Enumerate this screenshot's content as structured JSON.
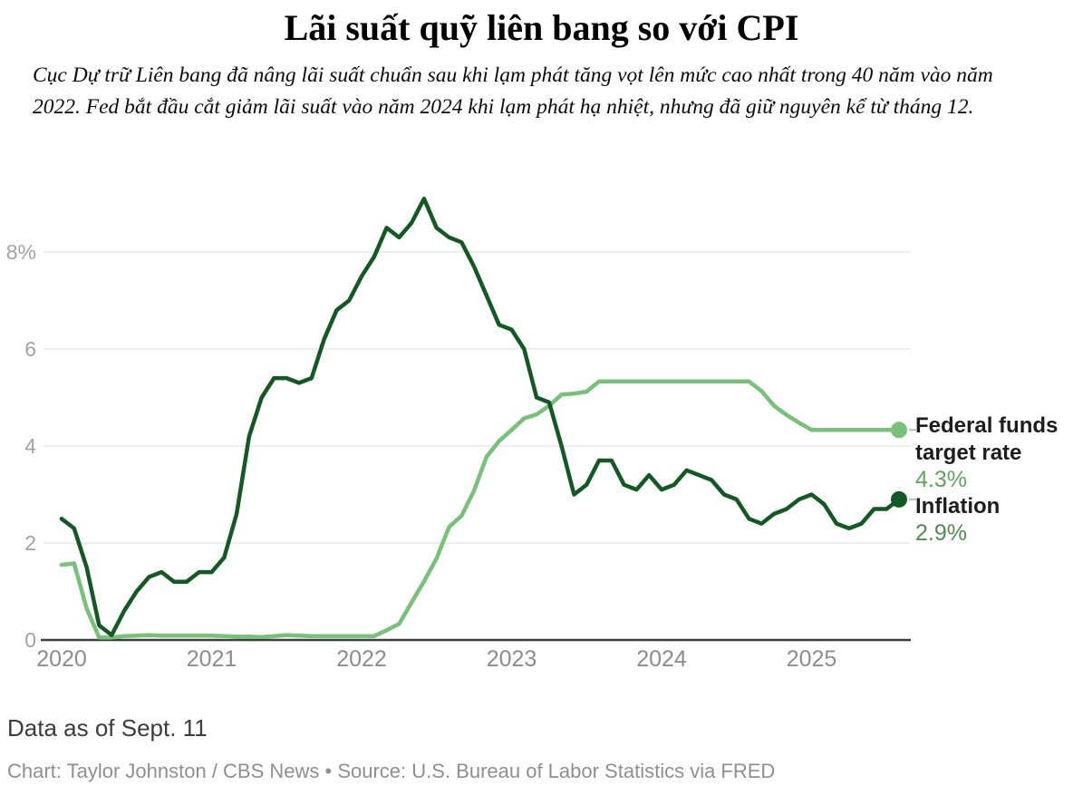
{
  "title": "Lãi suất quỹ liên bang so với CPI",
  "subtitle": "Cục Dự trữ Liên bang đã nâng lãi suất chuẩn sau khi lạm phát tăng vọt lên mức cao nhất trong 40 năm vào năm 2022. Fed bắt đầu cắt giảm lãi suất vào năm 2024 khi lạm phát hạ nhiệt, nhưng đã giữ nguyên kể từ tháng 12.",
  "colors": {
    "fed_line": "#78c178",
    "inflation_line": "#145923",
    "fed_value_text": "#5fa55f",
    "inflation_value_text": "#4f8d50",
    "grid": "#e9e9e9",
    "axis": "#3f3f3f",
    "ytick_label": "#a3a3a3",
    "xtick_label": "#8d8d8d",
    "end_dash": "#bbbbbb"
  },
  "chart_data": {
    "type": "line",
    "x_unit": "month",
    "x_start": "2020-01",
    "x_end": "2025-08",
    "grid": "horizontal",
    "ylim": [
      0,
      9.3
    ],
    "yticks": [
      {
        "label": "0",
        "value": 0
      },
      {
        "label": "2",
        "value": 2
      },
      {
        "label": "4",
        "value": 4
      },
      {
        "label": "6",
        "value": 6
      },
      {
        "label": "8%",
        "value": 8
      }
    ],
    "xticks": [
      {
        "label": "2020",
        "month_index": 0
      },
      {
        "label": "2021",
        "month_index": 12
      },
      {
        "label": "2022",
        "month_index": 24
      },
      {
        "label": "2023",
        "month_index": 36
      },
      {
        "label": "2024",
        "month_index": 48
      },
      {
        "label": "2025",
        "month_index": 60
      }
    ],
    "series": [
      {
        "name": "Federal funds target rate",
        "color": "#78c178",
        "end_value_label": "4.3%",
        "values": [
          1.55,
          1.58,
          0.65,
          0.05,
          0.05,
          0.08,
          0.09,
          0.1,
          0.09,
          0.09,
          0.09,
          0.09,
          0.09,
          0.08,
          0.07,
          0.07,
          0.06,
          0.08,
          0.1,
          0.09,
          0.08,
          0.08,
          0.08,
          0.08,
          0.08,
          0.08,
          0.2,
          0.33,
          0.77,
          1.21,
          1.68,
          2.33,
          2.56,
          3.08,
          3.78,
          4.1,
          4.33,
          4.57,
          4.65,
          4.83,
          5.06,
          5.08,
          5.12,
          5.33,
          5.33,
          5.33,
          5.33,
          5.33,
          5.33,
          5.33,
          5.33,
          5.33,
          5.33,
          5.33,
          5.33,
          5.33,
          5.13,
          4.83,
          4.64,
          4.48,
          4.33,
          4.33,
          4.33,
          4.33,
          4.33,
          4.33,
          4.33,
          4.33
        ]
      },
      {
        "name": "Inflation",
        "color": "#145923",
        "end_value_label": "2.9%",
        "values": [
          2.5,
          2.3,
          1.5,
          0.3,
          0.1,
          0.6,
          1.0,
          1.3,
          1.4,
          1.2,
          1.2,
          1.4,
          1.4,
          1.7,
          2.6,
          4.2,
          5.0,
          5.4,
          5.4,
          5.3,
          5.4,
          6.2,
          6.8,
          7.0,
          7.5,
          7.9,
          8.5,
          8.3,
          8.6,
          9.1,
          8.5,
          8.3,
          8.2,
          7.7,
          7.1,
          6.5,
          6.4,
          6.0,
          5.0,
          4.9,
          4.0,
          3.0,
          3.2,
          3.7,
          3.7,
          3.2,
          3.1,
          3.4,
          3.1,
          3.2,
          3.5,
          3.4,
          3.3,
          3.0,
          2.9,
          2.5,
          2.4,
          2.6,
          2.7,
          2.9,
          3.0,
          2.8,
          2.4,
          2.3,
          2.4,
          2.7,
          2.7,
          2.9
        ]
      }
    ],
    "legend_position": "right"
  },
  "legend": {
    "fed": {
      "line1": "Federal funds",
      "line2": "target rate",
      "value": "4.3%"
    },
    "inflation": {
      "label": "Inflation",
      "value": "2.9%"
    }
  },
  "footer": {
    "data_as_of": "Data as of Sept. 11",
    "credit": "Chart: Taylor Johnston / CBS News • Source: U.S. Bureau of Labor Statistics via FRED"
  }
}
